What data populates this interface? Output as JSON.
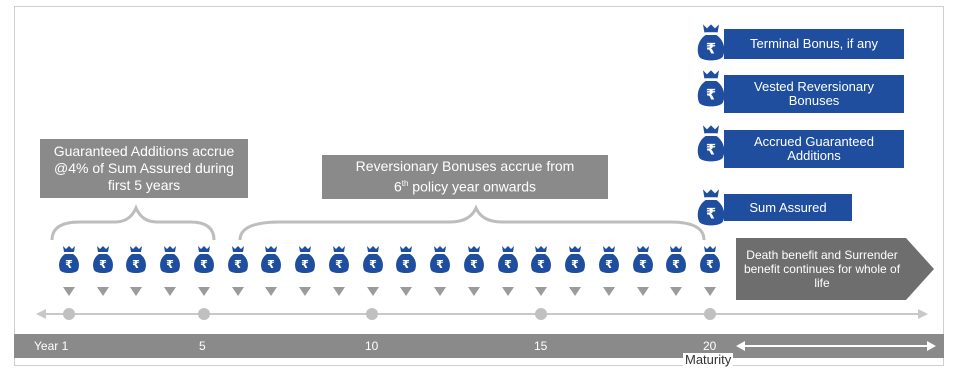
{
  "callouts": {
    "guaranteed": "Guaranteed Additions accrue @4% of Sum Assured during first 5 years",
    "reversionary_line1": "Reversionary Bonuses accrue from",
    "reversionary_line2_pre": "6",
    "reversionary_line2_sup": "th",
    "reversionary_line2_post": " policy year onwards"
  },
  "maturity_benefits": [
    "Terminal Bonus, if any",
    "Vested Reversionary Bonuses",
    "Accrued Guaranteed Additions",
    "Sum Assured"
  ],
  "arrow_text": "Death benefit and Surrender benefit continues for whole of life",
  "timeline": {
    "start_label": "Year 1",
    "ticks": [
      "5",
      "10",
      "15",
      "20"
    ],
    "maturity_label": "Maturity",
    "years": 20
  },
  "currency_symbol": "₹",
  "colors": {
    "blue": "#1f4e9e",
    "gray": "#8a8a8a",
    "line": "#c8c8c8"
  }
}
